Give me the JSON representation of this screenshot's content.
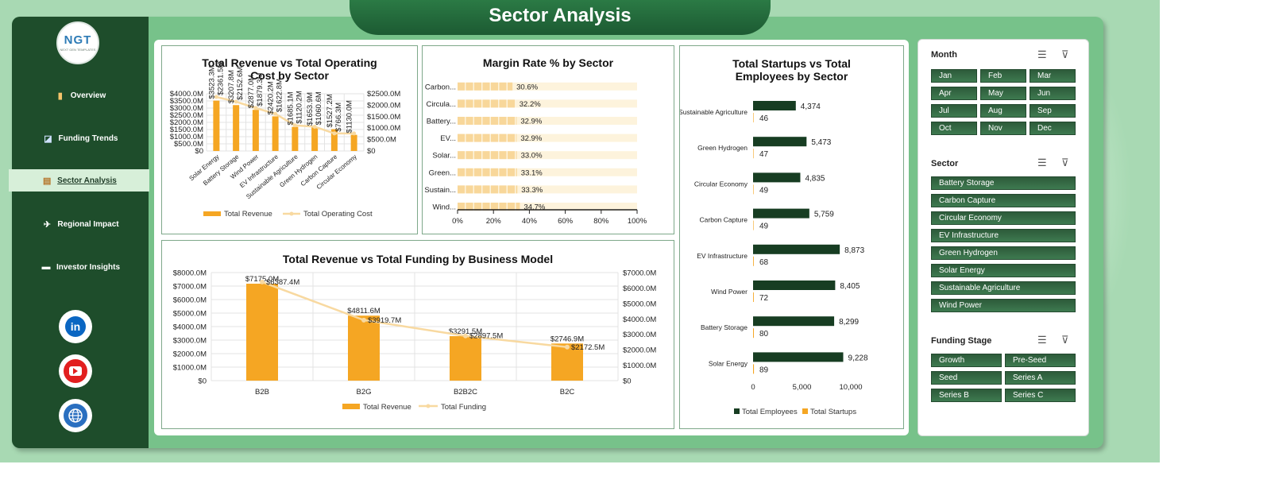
{
  "title": "Sector Analysis",
  "logo": {
    "text": "NGT",
    "sub": "NEXT GEN TEMPLATES"
  },
  "nav": [
    {
      "label": "Overview",
      "icon": "bar-chart-icon",
      "glyph": "▮",
      "active": false
    },
    {
      "label": "Funding Trends",
      "icon": "trend-chart-icon",
      "glyph": "◪",
      "active": false
    },
    {
      "label": "Sector Analysis",
      "icon": "clipboard-icon",
      "glyph": "▤",
      "active": true
    },
    {
      "label": "Regional Impact",
      "icon": "map-icon",
      "glyph": "✈",
      "active": false
    },
    {
      "label": "Investor Insights",
      "icon": "folder-icon",
      "glyph": "▬",
      "active": false
    }
  ],
  "social": [
    {
      "name": "linkedin-icon",
      "label": "in"
    },
    {
      "name": "youtube-icon",
      "label": ""
    },
    {
      "name": "website-icon",
      "label": ""
    }
  ],
  "colors": {
    "accent": "#f5a623",
    "line": "#f8d9a0",
    "dark_green": "#1e4d2b",
    "bar_green": "#173d22"
  },
  "chart_data": [
    {
      "type": "bar+line",
      "title": "Total Revenue vs Total Operating Cost by Sector",
      "categories": [
        "Solar Energy",
        "Battery Storage",
        "Wind Power",
        "EV Infrastructure",
        "Sustainable Agriculture",
        "Green Hydrogen",
        "Carbon Capture",
        "Circular Economy"
      ],
      "series": [
        {
          "name": "Total Revenue",
          "kind": "bar",
          "axis": "left",
          "values": [
            3523.3,
            3207.8,
            2877.0,
            2420.2,
            1685.1,
            1653.9,
            1527.2,
            1130.0
          ],
          "labels": [
            "$3523.3M",
            "$3207.8M",
            "$2877.0M",
            "$2420.2M",
            "$1685.1M",
            "$1653.9M",
            "$1527.2M",
            "$1130.0M"
          ]
        },
        {
          "name": "Total Operating Cost",
          "kind": "line",
          "axis": "right",
          "values": [
            2361.5,
            2152.6,
            1879.3,
            1622.8,
            1120.2,
            1060.6,
            766.3,
            766.3
          ],
          "labels": [
            "$2361.5M",
            "$2152.6M",
            "$1879.3M",
            "$1622.8M",
            "$1120.2M",
            "$1060.6M",
            "$766.3M",
            ""
          ]
        }
      ],
      "left_ticks": [
        "$4000.0M",
        "$3500.0M",
        "$3000.0M",
        "$2500.0M",
        "$2000.0M",
        "$1500.0M",
        "$1000.0M",
        "$500.0M",
        "$0"
      ],
      "right_ticks": [
        "$2500.0M",
        "$2000.0M",
        "$1500.0M",
        "$1000.0M",
        "$500.0M",
        "$0"
      ],
      "ylim_left": [
        0,
        4000
      ],
      "ylim_right": [
        0,
        2500
      ]
    },
    {
      "type": "bar",
      "orientation": "horizontal",
      "title": "Margin Rate % by Sector",
      "categories": [
        "Carbon...",
        "Circula...",
        "Battery...",
        "EV...",
        "Solar...",
        "Green...",
        "Sustain...",
        "Wind..."
      ],
      "values": [
        30.6,
        32.2,
        32.9,
        32.9,
        33.0,
        33.1,
        33.3,
        34.7
      ],
      "labels": [
        "30.6%",
        "32.2%",
        "32.9%",
        "32.9%",
        "33.0%",
        "33.1%",
        "33.3%",
        "34.7%"
      ],
      "x_ticks": [
        "0%",
        "20%",
        "40%",
        "60%",
        "80%",
        "100%"
      ],
      "xlim": [
        0,
        100
      ]
    },
    {
      "type": "bar",
      "orientation": "horizontal",
      "title": "Total Startups vs Total Employees by Sector",
      "categories": [
        "Sustainable Agriculture",
        "Green Hydrogen",
        "Circular Economy",
        "Carbon Capture",
        "EV Infrastructure",
        "Wind Power",
        "Battery Storage",
        "Solar Energy"
      ],
      "series": [
        {
          "name": "Total Employees",
          "values": [
            4374,
            5473,
            4835,
            5759,
            8873,
            8405,
            8299,
            9228
          ],
          "labels": [
            "4,374",
            "5,473",
            "4,835",
            "5,759",
            "8,873",
            "8,405",
            "8,299",
            "9,228"
          ]
        },
        {
          "name": "Total Startups",
          "values": [
            46,
            47,
            49,
            49,
            68,
            72,
            80,
            89
          ],
          "labels": [
            "46",
            "47",
            "49",
            "49",
            "68",
            "72",
            "80",
            "89"
          ]
        }
      ],
      "x_ticks": [
        "0",
        "5,000",
        "10,000"
      ],
      "xlim": [
        0,
        10000
      ]
    },
    {
      "type": "bar+line",
      "title": "Total Revenue vs Total Funding by Business Model",
      "categories": [
        "B2B",
        "B2G",
        "B2B2C",
        "B2C"
      ],
      "series": [
        {
          "name": "Total Revenue",
          "kind": "bar",
          "axis": "left",
          "values": [
            7175.0,
            4811.6,
            3291.5,
            2746.9
          ],
          "labels": [
            "$7175.0M",
            "$4811.6M",
            "$3291.5M",
            "$2746.9M"
          ]
        },
        {
          "name": "Total Funding",
          "kind": "line",
          "axis": "right",
          "values": [
            6387.4,
            3919.7,
            2897.5,
            2172.5
          ],
          "labels": [
            "$6387.4M",
            "$3919.7M",
            "$2897.5M",
            "$2172.5M"
          ]
        }
      ],
      "left_ticks": [
        "$8000.0M",
        "$7000.0M",
        "$6000.0M",
        "$5000.0M",
        "$4000.0M",
        "$3000.0M",
        "$2000.0M",
        "$1000.0M",
        "$0"
      ],
      "right_ticks": [
        "$7000.0M",
        "$6000.0M",
        "$5000.0M",
        "$4000.0M",
        "$3000.0M",
        "$2000.0M",
        "$1000.0M",
        "$0"
      ],
      "ylim_left": [
        0,
        8000
      ],
      "ylim_right": [
        0,
        7000
      ]
    }
  ],
  "slicers": {
    "month": {
      "title": "Month",
      "items": [
        "Jan",
        "Feb",
        "Mar",
        "Apr",
        "May",
        "Jun",
        "Jul",
        "Aug",
        "Sep",
        "Oct",
        "Nov",
        "Dec"
      ]
    },
    "sector": {
      "title": "Sector",
      "items": [
        "Battery Storage",
        "Carbon Capture",
        "Circular Economy",
        "EV Infrastructure",
        "Green Hydrogen",
        "Solar Energy",
        "Sustainable Agriculture",
        "Wind Power"
      ]
    },
    "stage": {
      "title": "Funding Stage",
      "items": [
        "Growth",
        "Pre-Seed",
        "Seed",
        "Series A",
        "Series B",
        "Series C"
      ]
    }
  }
}
